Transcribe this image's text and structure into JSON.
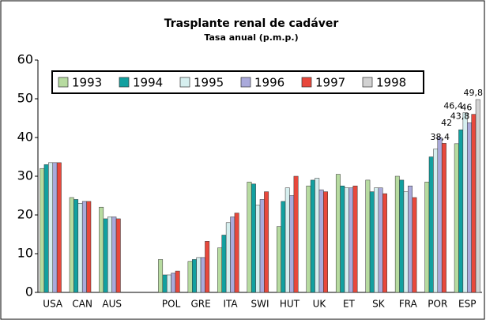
{
  "chart_data": {
    "type": "bar",
    "title": "Trasplante renal de cadáver",
    "subtitle": "Tasa anual (p.m.p.)",
    "categories": [
      "USA",
      "CAN",
      "AUS",
      null,
      "POL",
      "GRE",
      "ITA",
      "SWI",
      "HUT",
      "UK",
      "ET",
      "SK",
      "FRA",
      "POR",
      "ESP"
    ],
    "series": [
      {
        "name": "1993",
        "color": "#b7dba0",
        "values": [
          32,
          24.5,
          22,
          null,
          8.5,
          8,
          11.5,
          28.5,
          17,
          27.5,
          30.5,
          29,
          30,
          28.5,
          38.4
        ],
        "value_labels": [
          null,
          null,
          null,
          null,
          null,
          null,
          null,
          null,
          null,
          null,
          null,
          null,
          null,
          null,
          "38,4"
        ]
      },
      {
        "name": "1994",
        "color": "#12a0a0",
        "values": [
          33,
          24,
          19,
          null,
          4.5,
          8.5,
          14.8,
          28,
          23.5,
          29,
          27.5,
          26,
          29,
          35,
          42
        ],
        "value_labels": [
          null,
          null,
          null,
          null,
          null,
          null,
          null,
          null,
          null,
          null,
          null,
          null,
          null,
          null,
          "42"
        ]
      },
      {
        "name": "1995",
        "color": "#d6efef",
        "values": [
          33.5,
          23,
          19.5,
          null,
          4.5,
          9,
          18,
          22.5,
          27,
          29.5,
          27,
          27,
          26,
          37,
          46.4
        ],
        "value_labels": [
          null,
          null,
          null,
          null,
          null,
          null,
          null,
          null,
          null,
          null,
          null,
          null,
          null,
          null,
          "46,4"
        ]
      },
      {
        "name": "1996",
        "color": "#aaaadb",
        "values": [
          33.5,
          23.5,
          19.5,
          null,
          5,
          9,
          19.5,
          24,
          25,
          26.5,
          27,
          27,
          27.5,
          40,
          43.8
        ],
        "value_labels": [
          null,
          null,
          null,
          null,
          null,
          null,
          null,
          null,
          null,
          null,
          null,
          null,
          null,
          null,
          "43,8"
        ]
      },
      {
        "name": "1997",
        "color": "#e8483c",
        "values": [
          33.5,
          23.5,
          19,
          null,
          5.5,
          13.2,
          20.5,
          26,
          30,
          26,
          27.5,
          25.5,
          24.5,
          38.5,
          46
        ],
        "value_labels": [
          null,
          null,
          null,
          null,
          null,
          null,
          null,
          null,
          null,
          null,
          null,
          null,
          null,
          null,
          "46"
        ]
      },
      {
        "name": "1998",
        "color": "#d2d2d2",
        "values": [
          null,
          null,
          null,
          null,
          null,
          null,
          null,
          null,
          null,
          null,
          null,
          null,
          null,
          null,
          49.8
        ],
        "value_labels": [
          null,
          null,
          null,
          null,
          null,
          null,
          null,
          null,
          null,
          null,
          null,
          null,
          null,
          null,
          "49,8"
        ]
      }
    ],
    "ylim": [
      0,
      60
    ],
    "yticks": [
      0,
      10,
      20,
      30,
      40,
      50,
      60
    ],
    "grid": false,
    "legend": "top-left"
  }
}
